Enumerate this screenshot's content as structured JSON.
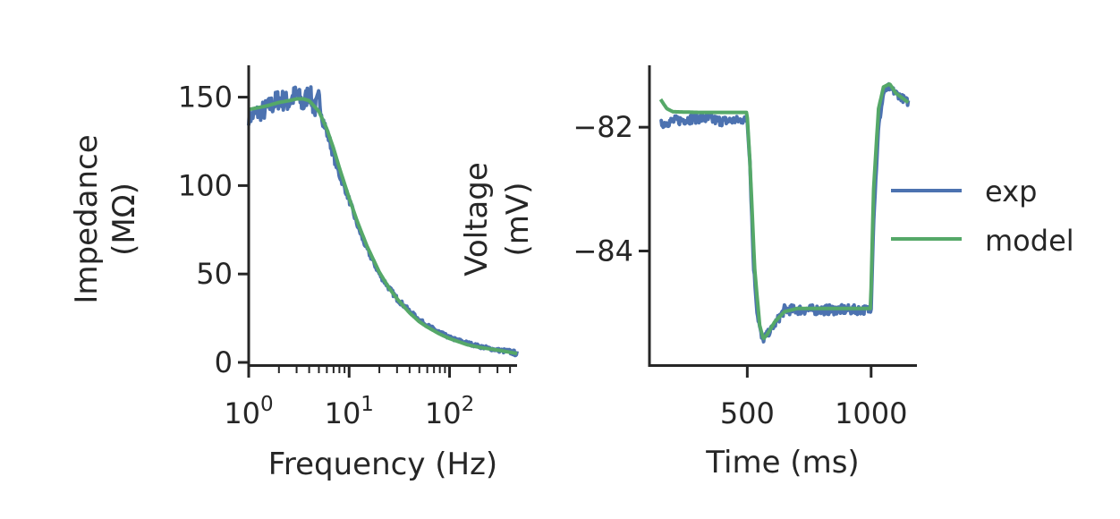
{
  "colors": {
    "exp": "#4c72b0",
    "model": "#55a868",
    "axis": "#262626"
  },
  "chart_data": [
    {
      "type": "line",
      "xscale": "log",
      "xlabel": "Frequency (Hz)",
      "ylabel_line1": "Impedance",
      "ylabel_line2": "(MΩ)",
      "xlim": [
        1,
        470
      ],
      "ylim": [
        0,
        168
      ],
      "xtick_values": [
        1,
        10,
        100
      ],
      "xtick_base": [
        "10",
        "10",
        "10"
      ],
      "xtick_exp": [
        "0",
        "1",
        "2"
      ],
      "ytick_values": [
        0,
        50,
        100,
        150
      ],
      "ytick_labels": [
        "0",
        "50",
        "100",
        "150"
      ],
      "grid": false,
      "series": [
        {
          "name": "exp",
          "x": [
            1,
            1.2,
            1.5,
            2,
            2.5,
            3,
            3.5,
            4,
            4.5,
            5,
            5.5,
            6,
            6.5,
            7,
            8,
            9,
            10,
            12,
            14,
            17,
            20,
            25,
            30,
            40,
            50,
            60,
            80,
            100,
            150,
            200,
            300,
            400,
            470
          ],
          "y": [
            138,
            141,
            143,
            149,
            147,
            152,
            145,
            154,
            142,
            150,
            137,
            130,
            124,
            117,
            106,
            99,
            92,
            78,
            68,
            58,
            50,
            42,
            36,
            29,
            24,
            21,
            17,
            14,
            11,
            9,
            7,
            6,
            5
          ],
          "noise_amplitude": [
            4,
            5,
            6,
            6,
            6,
            6,
            6,
            6,
            5,
            5,
            4,
            3,
            3,
            3,
            2,
            2,
            2,
            1.5,
            1.5,
            1.5,
            1.5,
            1.5,
            1.5,
            1.2,
            1.2,
            1,
            1,
            1,
            1,
            1,
            1,
            1.5,
            1.5
          ]
        },
        {
          "name": "model",
          "x": [
            1,
            1.5,
            2,
            2.5,
            3,
            3.5,
            4,
            5,
            6,
            7,
            8,
            9,
            10,
            12,
            15,
            20,
            25,
            30,
            40,
            50,
            60,
            80,
            100,
            150,
            200,
            300,
            470
          ],
          "y": [
            143,
            145,
            147,
            148,
            149,
            149,
            148,
            142,
            132,
            121,
            110,
            101,
            93,
            80,
            66,
            51,
            42,
            36,
            28,
            23,
            20,
            16,
            13.5,
            10,
            8.5,
            7,
            5
          ]
        }
      ]
    },
    {
      "type": "line",
      "xlabel": "Time (ms)",
      "ylabel_line1": "Voltage",
      "ylabel_line2": "(mV)",
      "xlim": [
        105,
        1185
      ],
      "ylim": [
        -85.8,
        -81.0
      ],
      "xtick_values": [
        500,
        1000
      ],
      "xtick_labels": [
        "500",
        "1000"
      ],
      "ytick_values": [
        -82,
        -84
      ],
      "ytick_labels": [
        "−82",
        "−84"
      ],
      "grid": false,
      "legend": {
        "position": "right",
        "entries": [
          "exp",
          "model"
        ]
      },
      "series": [
        {
          "name": "exp",
          "x": [
            150,
            200,
            300,
            400,
            495,
            500,
            510,
            525,
            540,
            560,
            580,
            600,
            650,
            700,
            800,
            900,
            995,
            1000,
            1010,
            1030,
            1050,
            1070,
            1100,
            1150
          ],
          "y": [
            -81.95,
            -81.9,
            -81.85,
            -81.9,
            -81.88,
            -81.9,
            -82.5,
            -84.2,
            -85.0,
            -85.45,
            -85.35,
            -85.25,
            -84.95,
            -84.95,
            -84.95,
            -84.95,
            -84.95,
            -84.9,
            -83.5,
            -82.0,
            -81.45,
            -81.35,
            -81.45,
            -81.6
          ],
          "noise_amplitude": [
            0.06,
            0.08,
            0.08,
            0.08,
            0.06,
            0.05,
            0.05,
            0.05,
            0.05,
            0.06,
            0.06,
            0.06,
            0.08,
            0.08,
            0.08,
            0.08,
            0.07,
            0.05,
            0.05,
            0.05,
            0.05,
            0.06,
            0.06,
            0.06
          ]
        },
        {
          "name": "model",
          "x": [
            150,
            175,
            200,
            300,
            400,
            498,
            500,
            510,
            530,
            550,
            565,
            580,
            610,
            650,
            700,
            800,
            900,
            998,
            1000,
            1010,
            1030,
            1050,
            1075,
            1100,
            1150
          ],
          "y": [
            -81.55,
            -81.7,
            -81.75,
            -81.76,
            -81.76,
            -81.76,
            -81.85,
            -82.5,
            -84.3,
            -85.2,
            -85.42,
            -85.35,
            -85.15,
            -84.98,
            -84.93,
            -84.93,
            -84.93,
            -84.93,
            -84.6,
            -83.0,
            -81.7,
            -81.35,
            -81.3,
            -81.45,
            -81.6
          ]
        }
      ]
    }
  ]
}
